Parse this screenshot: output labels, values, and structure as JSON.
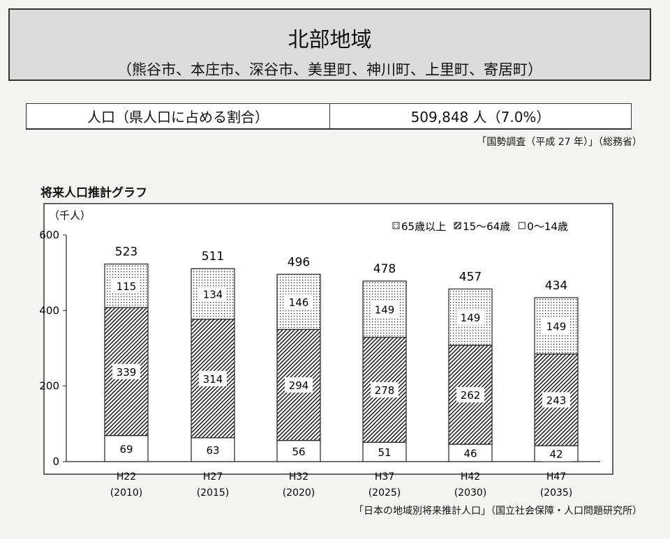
{
  "header": {
    "title": "北部地域",
    "subtitle": "（熊谷市、本庄市、深谷市、美里町、神川町、上里町、寄居町）"
  },
  "population": {
    "label": "人口（県人口に占める割合）",
    "value": "509,848 人（7.0%）",
    "source": "「国勢調査（平成 27 年）」（総務省）"
  },
  "chart_title": "将来人口推計グラフ",
  "chart_source": "「日本の地域別将来推計人口」（国立社会保障・人口問題研究所）",
  "chart_data": {
    "type": "bar",
    "stacked": true,
    "ylabel": "（千人）",
    "ylim": [
      0,
      600
    ],
    "yticks": [
      0,
      200,
      400,
      600
    ],
    "categories": [
      "H22",
      "H27",
      "H32",
      "H37",
      "H42",
      "H47"
    ],
    "category_years": [
      "(2010)",
      "(2015)",
      "(2020)",
      "(2025)",
      "(2030)",
      "(2035)"
    ],
    "series": [
      {
        "name": "0～14歳",
        "pattern": "white",
        "values": [
          69,
          63,
          56,
          51,
          46,
          42
        ]
      },
      {
        "name": "15～64歳",
        "pattern": "hatch",
        "values": [
          339,
          314,
          294,
          278,
          262,
          243
        ]
      },
      {
        "name": "65歳以上",
        "pattern": "dots",
        "values": [
          115,
          134,
          146,
          149,
          149,
          149
        ]
      }
    ],
    "totals": [
      523,
      511,
      496,
      478,
      457,
      434
    ],
    "legend": [
      "65歳以上",
      "15～64歳",
      "0～14歳"
    ],
    "legend_position": "top-right"
  }
}
